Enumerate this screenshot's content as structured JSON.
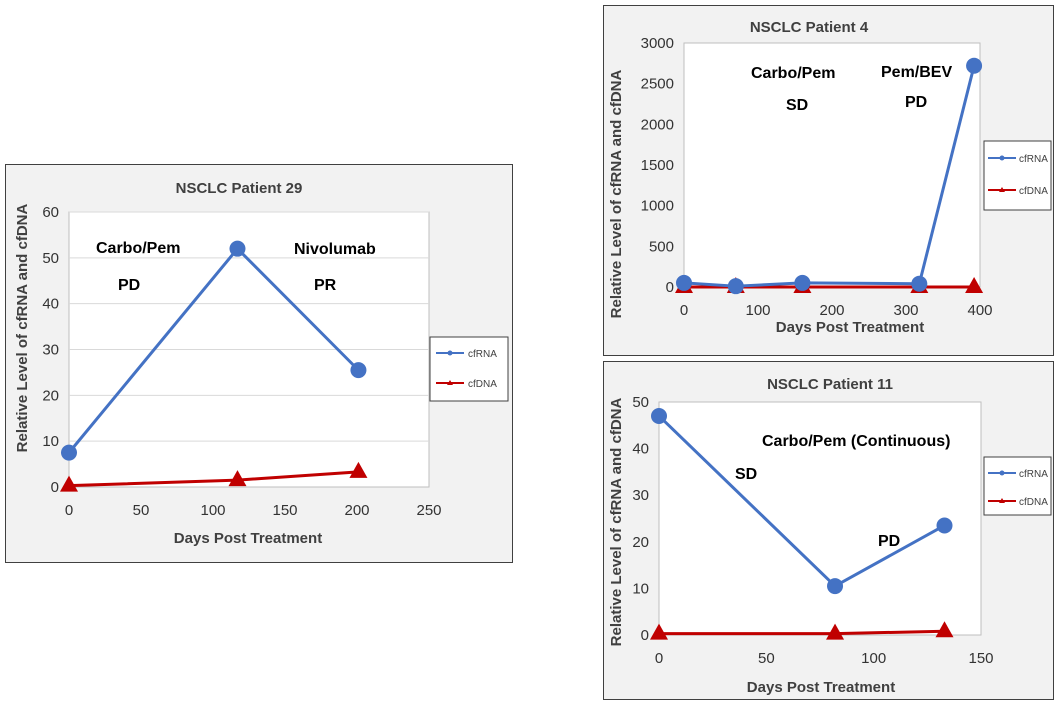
{
  "colors": {
    "cfRNA": "#4472c4",
    "cfDNA": "#c00000",
    "panel_bg": "#f2f2f2",
    "grid": "#d9d9d9"
  },
  "charts": [
    {
      "id": "p29",
      "title": "NSCLC Patient 29",
      "xlabel": "Days Post Treatment",
      "ylabel": "Relative Level of cfRNA and cfDNA",
      "xlim": [
        0,
        250
      ],
      "ylim": [
        0,
        60
      ],
      "xticks": [
        "0",
        "50",
        "100",
        "150",
        "200",
        "250"
      ],
      "yticks": [
        "0",
        "10",
        "20",
        "30",
        "40",
        "50",
        "60"
      ],
      "legend": [
        "cfRNA",
        "cfDNA"
      ],
      "annotations": [
        "Carbo/Pem",
        "PD",
        "Nivolumab",
        "PR"
      ]
    },
    {
      "id": "p4",
      "title": "NSCLC Patient 4",
      "xlabel": "Days Post Treatment",
      "ylabel": "Relative Level of cfRNA and cfDNA",
      "xlim": [
        0,
        400
      ],
      "ylim": [
        0,
        3000
      ],
      "xticks": [
        "0",
        "100",
        "200",
        "300",
        "400"
      ],
      "yticks": [
        "0",
        "500",
        "1000",
        "1500",
        "2000",
        "2500",
        "3000"
      ],
      "legend": [
        "cfRNA",
        "cfDNA"
      ],
      "annotations": [
        "Carbo/Pem",
        "SD",
        "Pem/BEV",
        "PD"
      ]
    },
    {
      "id": "p11",
      "title": "NSCLC Patient 11",
      "xlabel": "Days Post Treatment",
      "ylabel": "Relative Level of cfRNA and cfDNA",
      "xlim": [
        0,
        150
      ],
      "ylim": [
        0,
        50
      ],
      "xticks": [
        "0",
        "50",
        "100",
        "150"
      ],
      "yticks": [
        "0",
        "10",
        "20",
        "30",
        "40",
        "50"
      ],
      "legend": [
        "cfRNA",
        "cfDNA"
      ],
      "annotations": [
        "Carbo/Pem (Continuous)",
        "SD",
        "PD"
      ]
    }
  ],
  "chart_data": [
    {
      "type": "line",
      "title": "NSCLC Patient 29",
      "xlabel": "Days Post Treatment",
      "ylabel": "Relative Level of cfRNA and cfDNA",
      "xlim": [
        0,
        250
      ],
      "ylim": [
        0,
        60
      ],
      "grid": true,
      "legend_position": "right",
      "series": [
        {
          "name": "cfRNA",
          "x": [
            0,
            117,
            201
          ],
          "y": [
            7.5,
            52,
            25.5
          ]
        },
        {
          "name": "cfDNA",
          "x": [
            0,
            117,
            201
          ],
          "y": [
            0.3,
            1.5,
            3.3
          ]
        }
      ]
    },
    {
      "type": "line",
      "title": "NSCLC Patient 4",
      "xlabel": "Days Post Treatment",
      "ylabel": "Relative Level of cfRNA and cfDNA",
      "xlim": [
        0,
        400
      ],
      "ylim": [
        0,
        3000
      ],
      "grid": false,
      "legend_position": "right",
      "series": [
        {
          "name": "cfRNA",
          "x": [
            0,
            70,
            160,
            318,
            392
          ],
          "y": [
            50,
            10,
            50,
            40,
            2720
          ]
        },
        {
          "name": "cfDNA",
          "x": [
            0,
            70,
            160,
            318,
            392
          ],
          "y": [
            0,
            0,
            0,
            0,
            0
          ]
        }
      ]
    },
    {
      "type": "line",
      "title": "NSCLC Patient 11",
      "xlabel": "Days Post Treatment",
      "ylabel": "Relative Level of cfRNA and cfDNA",
      "xlim": [
        0,
        150
      ],
      "ylim": [
        0,
        50
      ],
      "grid": false,
      "legend_position": "right",
      "series": [
        {
          "name": "cfRNA",
          "x": [
            0,
            82,
            133
          ],
          "y": [
            47,
            10.5,
            23.5
          ]
        },
        {
          "name": "cfDNA",
          "x": [
            0,
            82,
            133
          ],
          "y": [
            0.3,
            0.3,
            0.8
          ]
        }
      ]
    }
  ]
}
